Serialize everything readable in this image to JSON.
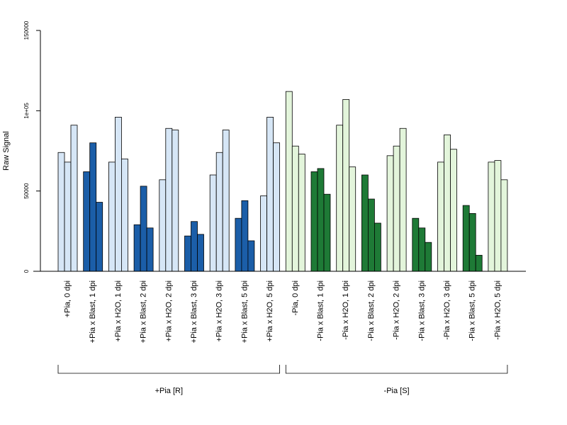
{
  "chart_data": {
    "type": "bar",
    "ylabel": "Raw Signal",
    "ylim": [
      0,
      150000
    ],
    "yticks": [
      0,
      50000,
      100000,
      150000
    ],
    "ytick_labels": [
      "0",
      "50000",
      "1e+05",
      "150000"
    ],
    "replicates_per_group": 3,
    "categories": [
      "+Pia, 0 dpi",
      "+Pia x Blast, 1 dpi",
      "+Pia x H2O, 1 dpi",
      "+Pia x Blast, 2 dpi",
      "+Pia x H2O, 2 dpi",
      "+Pia x Blast, 3 dpi",
      "+Pia x H2O, 3 dpi",
      "+Pia x Blast, 5 dpi",
      "+Pia x H2O, 5 dpi",
      "-Pia, 0 dpi",
      "-Pia x Blast, 1 dpi",
      "-Pia x H2O, 1 dpi",
      "-Pia x Blast, 2 dpi",
      "-Pia x H2O, 2 dpi",
      "-Pia x Blast, 3 dpi",
      "-Pia x H2O, 3 dpi",
      "-Pia x Blast, 5 dpi",
      "-Pia x H2O, 5 dpi"
    ],
    "values": [
      [
        74000,
        68000,
        91000
      ],
      [
        62000,
        80000,
        43000
      ],
      [
        68000,
        96000,
        70000
      ],
      [
        29000,
        53000,
        27000
      ],
      [
        57000,
        89000,
        88000
      ],
      [
        22000,
        31000,
        23000
      ],
      [
        60000,
        74000,
        88000
      ],
      [
        33000,
        44000,
        19000
      ],
      [
        47000,
        96000,
        80000
      ],
      [
        112000,
        78000,
        73000
      ],
      [
        62000,
        64000,
        48000
      ],
      [
        91000,
        107000,
        65000
      ],
      [
        60000,
        45000,
        30000
      ],
      [
        72000,
        78000,
        89000
      ],
      [
        33000,
        27000,
        18000
      ],
      [
        68000,
        85000,
        76000
      ],
      [
        41000,
        36000,
        10000
      ],
      [
        68000,
        69000,
        57000
      ]
    ],
    "colors": [
      "#d6e6f6",
      "#1b5ea8",
      "#d6e6f6",
      "#1b5ea8",
      "#d6e6f6",
      "#1b5ea8",
      "#d6e6f6",
      "#1b5ea8",
      "#d6e6f6",
      "#e3f5db",
      "#1e7a36",
      "#e3f5db",
      "#1e7a36",
      "#e3f5db",
      "#1e7a36",
      "#e3f5db",
      "#1e7a36",
      "#e3f5db"
    ],
    "brackets": [
      {
        "label": "+Pia [R]",
        "from": 0,
        "to": 8
      },
      {
        "label": "-Pia [S]",
        "from": 9,
        "to": 17
      }
    ]
  }
}
